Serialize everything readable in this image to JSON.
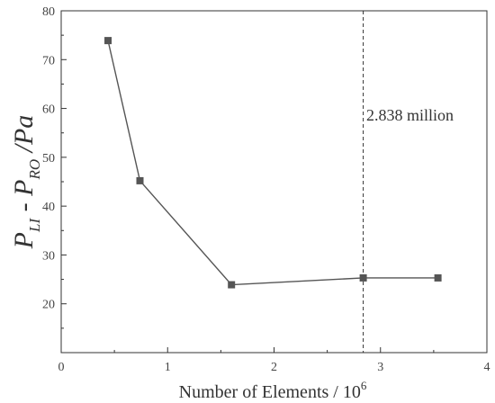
{
  "chart_data": {
    "type": "line",
    "xlim": [
      0,
      4
    ],
    "ylim": [
      10,
      80
    ],
    "x_ticks": [
      0,
      1,
      2,
      3,
      4
    ],
    "y_ticks": [
      20,
      30,
      40,
      50,
      60,
      70,
      80
    ],
    "xlabel": {
      "prefix": "Number of Elements / 10",
      "exponent": "6"
    },
    "ylabel": {
      "p1": "P",
      "s1": "LI",
      "mid": " - ",
      "p2": "P",
      "s2": "RO",
      "tail": " /Pa"
    },
    "series": [
      {
        "x": [
          0.44,
          0.74,
          1.6,
          2.838,
          3.54
        ],
        "y": [
          73.9,
          45.2,
          23.9,
          25.3,
          25.3
        ],
        "color": "#555555",
        "marker": "square"
      }
    ],
    "reference_line": {
      "x": 2.838,
      "style": "dashed",
      "label": "2.838 million"
    }
  }
}
